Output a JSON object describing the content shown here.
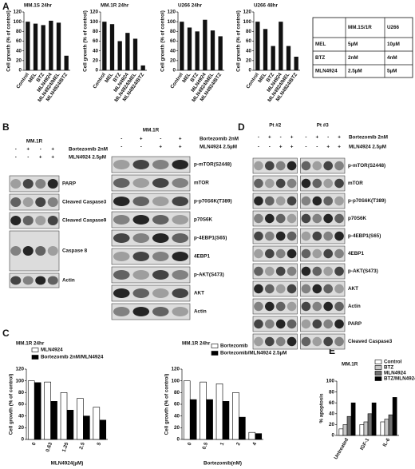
{
  "panel_labels": [
    "A",
    "B",
    "C",
    "D",
    "E"
  ],
  "chart_data": [
    {
      "type": "bar",
      "title": "MM.1S 24hr",
      "y_label": "Cell growth (% of control)",
      "categories": [
        "Control",
        "MEL",
        "BTZ",
        "MLN4924",
        "MLN4924/MEL",
        "MLN4924/BTZ"
      ],
      "values": [
        100,
        96,
        93,
        102,
        98,
        30
      ],
      "color": "#111111",
      "ylim": [
        0,
        120
      ],
      "yticks": [
        0,
        20,
        40,
        60,
        80,
        100,
        120
      ]
    },
    {
      "type": "bar",
      "title": "MM.1R 24hr",
      "y_label": "Cell growth (% of control)",
      "categories": [
        "Control",
        "MEL",
        "BTZ",
        "MLN4924",
        "MLN4924/MEL",
        "MLN4924/BTZ"
      ],
      "values": [
        100,
        95,
        60,
        77,
        65,
        10
      ],
      "color": "#111111",
      "ylim": [
        0,
        120
      ],
      "yticks": [
        0,
        20,
        40,
        60,
        80,
        100,
        120
      ]
    },
    {
      "type": "bar",
      "title": "U266 24hr",
      "y_label": "Cell growth (% of control)",
      "categories": [
        "Control",
        "MEL",
        "BTZ",
        "MLN4924",
        "MLN4924/MEL",
        "MLN4924/BTZ"
      ],
      "values": [
        100,
        88,
        80,
        104,
        82,
        70
      ],
      "color": "#111111",
      "ylim": [
        0,
        120
      ],
      "yticks": [
        0,
        20,
        40,
        60,
        80,
        100,
        120
      ]
    },
    {
      "type": "bar",
      "title": "U266 48hr",
      "y_label": "Cell growth (% of control)",
      "categories": [
        "Control",
        "MEL",
        "BTZ",
        "MLN4924",
        "MLN4924/MEL",
        "MLN4924/BTZ"
      ],
      "values": [
        100,
        85,
        50,
        100,
        50,
        28
      ],
      "color": "#111111",
      "ylim": [
        0,
        120
      ],
      "yticks": [
        0,
        20,
        40,
        60,
        80,
        100,
        120
      ]
    },
    {
      "type": "bar",
      "title": "MM.1R 24hr",
      "y_label": "Cell growth (% of control)",
      "x_label": "MLN4924(µM)",
      "categories": [
        "0",
        "0.63",
        "1.25",
        "2.5",
        "5"
      ],
      "series": [
        {
          "name": "MLN4924",
          "color": "#ffffff",
          "values": [
            100,
            98,
            80,
            70,
            55
          ]
        },
        {
          "name": "Bortezomib 2nM/MLN4924",
          "color": "#000000",
          "values": [
            97,
            65,
            50,
            40,
            33
          ]
        }
      ],
      "ylim": [
        0,
        120
      ],
      "yticks": [
        0,
        20,
        40,
        60,
        80,
        100,
        120
      ]
    },
    {
      "type": "bar",
      "title": "MM.1R 24hr",
      "y_label": "Cell growth (% of control)",
      "x_label": "Bortezomib(nM)",
      "categories": [
        "0",
        "0.5",
        "1",
        "2",
        "4"
      ],
      "series": [
        {
          "name": "Bortezomib",
          "color": "#ffffff",
          "values": [
            100,
            98,
            95,
            80,
            12
          ]
        },
        {
          "name": "Bortezomib/MLN4924 2.5µM",
          "color": "#000000",
          "values": [
            68,
            68,
            65,
            38,
            10
          ]
        }
      ],
      "ylim": [
        0,
        120
      ],
      "yticks": [
        0,
        20,
        40,
        60,
        80,
        100,
        120
      ]
    },
    {
      "type": "bar",
      "title": "MM.1R",
      "y_label": "% apoptosis",
      "categories": [
        "Untreated",
        "IGF-1",
        "IL-6"
      ],
      "series": [
        {
          "name": "Control",
          "color": "#ffffff",
          "values": [
            12,
            20,
            25
          ]
        },
        {
          "name": "BTZ",
          "color": "#c8c8c8",
          "values": [
            20,
            25,
            30
          ]
        },
        {
          "name": "MLN4924",
          "color": "#707070",
          "values": [
            35,
            40,
            38
          ]
        },
        {
          "name": "BTZ/MLN4924",
          "color": "#000000",
          "values": [
            60,
            60,
            70
          ]
        }
      ],
      "ylim": [
        0,
        100
      ],
      "yticks": [
        0,
        20,
        40,
        60,
        80,
        100
      ]
    }
  ],
  "dose_table": {
    "header": [
      "MM.1S/1R",
      "U266"
    ],
    "rows": [
      [
        "MEL",
        "5µM",
        "10µM"
      ],
      [
        "BTZ",
        "2nM",
        "4nM"
      ],
      [
        "MLN4924",
        "2.5µM",
        "5µM"
      ]
    ]
  },
  "blots": {
    "b_left": {
      "groups": [
        "MM.1R"
      ],
      "treatments": [
        {
          "name": "Bortezomib 2nM",
          "signs": [
            "-",
            "+",
            "-",
            "+"
          ]
        },
        {
          "name": "MLN4924 2.5µM",
          "signs": [
            "-",
            "-",
            "+",
            "+"
          ]
        }
      ],
      "bands": [
        "PARP",
        "Cleaved Caspase3",
        "Cleaved Caspase9",
        "Caspase 8",
        "Actin"
      ]
    },
    "b_right": {
      "groups": [
        "MM.1R"
      ],
      "treatments": [
        {
          "name": "Bortezomib 2nM",
          "signs": [
            "-",
            "+",
            "-",
            "+"
          ]
        },
        {
          "name": "MLN4924 2.5µM",
          "signs": [
            "-",
            "-",
            "+",
            "+"
          ]
        }
      ],
      "bands": [
        "p-mTOR(S2448)",
        "mTOR",
        "p-p70S6K(T389)",
        "p70S6K",
        "p-4EBP1(S65)",
        "4EBP1",
        "p-AKT(S473)",
        "AKT",
        "Actin"
      ]
    },
    "d": {
      "groups": [
        "Pt #2",
        "Pt #3"
      ],
      "treatments": [
        {
          "name": "Bortezomib 2nM",
          "signs": [
            "-",
            "+",
            "-",
            "+",
            "-",
            "+",
            "-",
            "+"
          ]
        },
        {
          "name": "MLN4924 2.5µM",
          "signs": [
            "-",
            "-",
            "+",
            "+",
            "-",
            "-",
            "+",
            "+"
          ]
        }
      ],
      "bands": [
        "p-mTOR(S2448)",
        "mTOR",
        "p-p70S6K(T389)",
        "p70S6K",
        "p-4EBP1(S65)",
        "4EBP1",
        "p-AKT(S473)",
        "AKT",
        "Actin",
        "PARP",
        "Cleaved Caspase3"
      ]
    }
  }
}
